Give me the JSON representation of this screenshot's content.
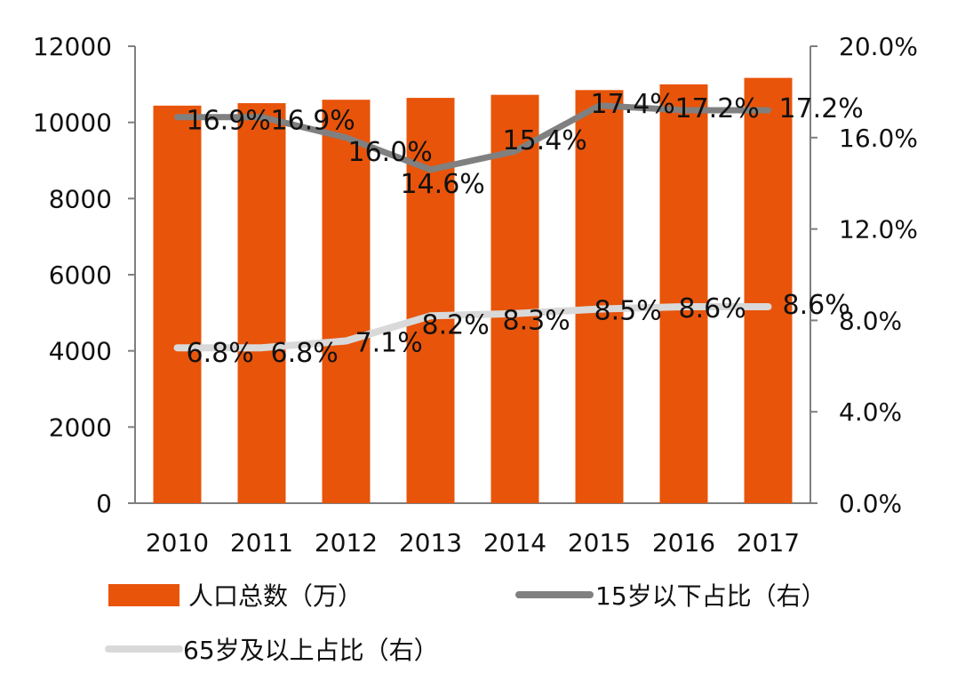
{
  "chart_data": {
    "type": "bar",
    "categories": [
      "2010",
      "2011",
      "2012",
      "2013",
      "2014",
      "2015",
      "2016",
      "2017"
    ],
    "y_left": {
      "ticks": [
        "0",
        "2000",
        "4000",
        "6000",
        "8000",
        "10000",
        "12000"
      ],
      "lim": [
        0,
        12000
      ]
    },
    "y_right": {
      "ticks": [
        "0.0%",
        "4.0%",
        "8.0%",
        "12.0%",
        "16.0%",
        "20.0%"
      ],
      "lim": [
        0,
        20
      ]
    },
    "series": [
      {
        "name": "人口总数（万）",
        "type": "bar",
        "axis": "left",
        "color": "#E8540A",
        "values": [
          10440,
          10505,
          10595,
          10644,
          10724,
          10849,
          10999,
          11169
        ]
      },
      {
        "name": "15岁以下占比（右）",
        "type": "line",
        "axis": "right",
        "color": "#808080",
        "values": [
          16.9,
          16.9,
          16.0,
          14.6,
          15.4,
          17.4,
          17.2,
          17.2
        ],
        "labels": [
          "16.9%",
          "16.9%",
          "16.0%",
          "14.6%",
          "15.4%",
          "17.4%",
          "17.2%",
          "17.2%"
        ]
      },
      {
        "name": "65岁及以上占比（右）",
        "type": "line",
        "axis": "right",
        "color": "#D9D9D9",
        "values": [
          6.8,
          6.8,
          7.1,
          8.2,
          8.3,
          8.5,
          8.6,
          8.6
        ],
        "labels": [
          "6.8%",
          "6.8%",
          "7.1%",
          "8.2%",
          "8.3%",
          "8.5%",
          "8.6%",
          "8.6%"
        ]
      }
    ],
    "legend": {
      "placement": "bottom"
    },
    "grid": false
  }
}
